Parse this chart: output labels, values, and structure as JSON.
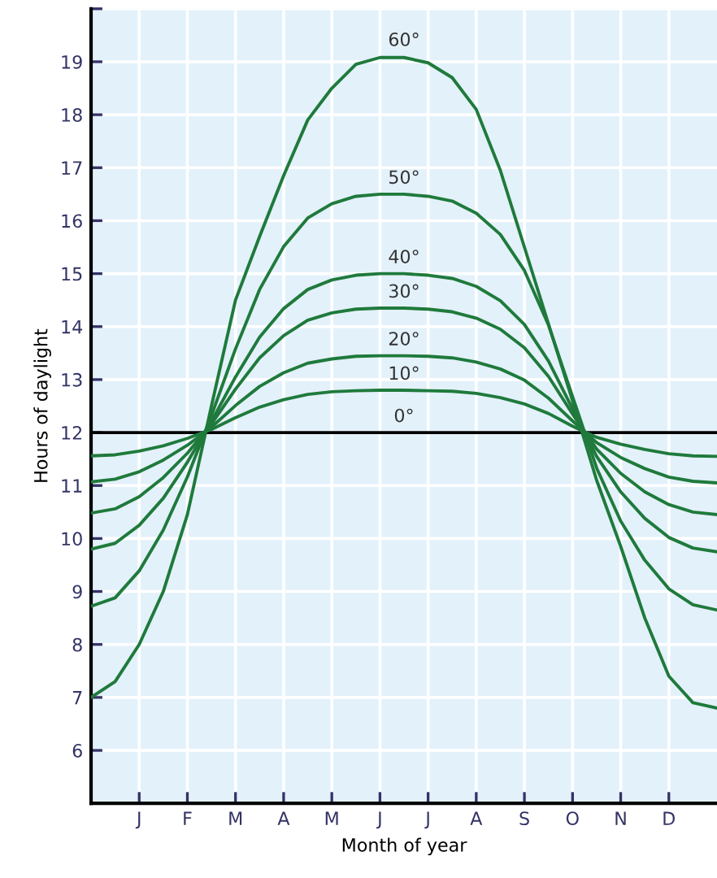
{
  "chart_data": {
    "type": "line",
    "xlabel": "Month of year",
    "ylabel": "Hours of daylight",
    "categories": [
      null,
      null,
      "J",
      null,
      "F",
      null,
      "M",
      null,
      "A",
      null,
      "M",
      null,
      "J",
      null,
      "J",
      null,
      "A",
      null,
      "S",
      null,
      "O",
      null,
      "N",
      null,
      "D",
      null,
      null
    ],
    "ylim": [
      5,
      20
    ],
    "yticks": [
      6,
      7,
      8,
      9,
      10,
      11,
      12,
      13,
      14,
      15,
      16,
      17,
      18,
      19,
      {
        "value": 20,
        "label": null
      }
    ],
    "grid": true,
    "legend": false,
    "series": [
      {
        "color": "#000000",
        "values": [
          12,
          12,
          12,
          12,
          12,
          12,
          12,
          12,
          12,
          12,
          12,
          12,
          12,
          12,
          12,
          12,
          12,
          12,
          12,
          12,
          12,
          12,
          12,
          12,
          12,
          12,
          12
        ]
      },
      {
        "color": "#1f7a3c",
        "values": [
          11.56,
          11.58,
          11.65,
          11.75,
          11.89,
          12.06,
          12.28,
          12.48,
          12.62,
          12.72,
          12.77,
          12.79,
          12.8,
          12.8,
          12.79,
          12.78,
          12.74,
          12.66,
          12.54,
          12.36,
          12.12,
          11.91,
          11.78,
          11.68,
          11.6,
          11.56,
          11.55
        ]
      },
      {
        "color": "#1f7a3c",
        "values": [
          11.07,
          11.12,
          11.26,
          11.48,
          11.76,
          12.1,
          12.51,
          12.87,
          13.13,
          13.31,
          13.39,
          13.44,
          13.45,
          13.45,
          13.44,
          13.41,
          13.33,
          13.2,
          12.99,
          12.65,
          12.22,
          11.81,
          11.53,
          11.32,
          11.16,
          11.08,
          11.05
        ]
      },
      {
        "color": "#1f7a3c",
        "values": [
          10.48,
          10.56,
          10.79,
          11.15,
          11.61,
          12.16,
          12.82,
          13.41,
          13.83,
          14.12,
          14.26,
          14.33,
          14.35,
          14.35,
          14.33,
          14.28,
          14.16,
          13.95,
          13.6,
          13.06,
          12.35,
          11.69,
          11.23,
          10.88,
          10.64,
          10.5,
          10.45
        ]
      },
      {
        "color": "#1f7a3c",
        "values": [
          9.8,
          9.91,
          10.25,
          10.76,
          11.44,
          12.21,
          13.05,
          13.8,
          14.34,
          14.7,
          14.88,
          14.97,
          15.0,
          15.0,
          14.97,
          14.91,
          14.76,
          14.49,
          14.04,
          13.35,
          12.45,
          11.55,
          10.88,
          10.38,
          10.02,
          9.82,
          9.75
        ]
      },
      {
        "color": "#1f7a3c",
        "values": [
          8.72,
          8.88,
          9.39,
          10.16,
          11.16,
          12.32,
          13.58,
          14.7,
          15.51,
          16.05,
          16.32,
          16.46,
          16.5,
          16.5,
          16.46,
          16.37,
          16.14,
          15.74,
          15.06,
          14.03,
          12.68,
          11.33,
          10.33,
          9.59,
          9.05,
          8.75,
          8.65
        ]
      },
      {
        "color": "#1f7a3c",
        "values": [
          7.0,
          7.3,
          8.0,
          9.0,
          10.45,
          12.5,
          14.5,
          15.7,
          16.85,
          17.9,
          18.5,
          18.95,
          19.08,
          19.08,
          18.98,
          18.7,
          18.1,
          16.95,
          15.5,
          14.05,
          12.6,
          11.1,
          9.85,
          8.5,
          7.4,
          6.9,
          6.8
        ]
      }
    ],
    "annotations": [
      {
        "text": "60°",
        "y": 19.1
      },
      {
        "text": "50°",
        "y": 16.5
      },
      {
        "text": "40°",
        "y": 15.0
      },
      {
        "text": "30°",
        "y": 14.35
      },
      {
        "text": "20°",
        "y": 13.45
      },
      {
        "text": "10°",
        "y": 12.8
      },
      {
        "text": "0°",
        "y": 12
      }
    ]
  }
}
